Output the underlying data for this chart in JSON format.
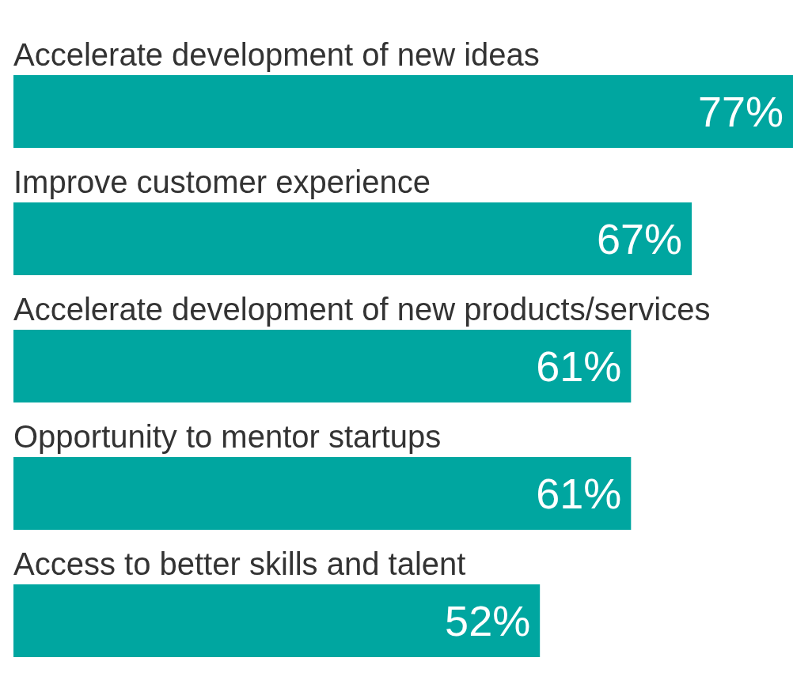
{
  "chart_data": {
    "type": "bar",
    "orientation": "horizontal",
    "categories": [
      "Accelerate development of new ideas",
      "Improve customer experience",
      "Accelerate development of new products/services",
      "Opportunity to mentor startups",
      "Access to better skills and talent"
    ],
    "values": [
      77,
      67,
      61,
      61,
      52
    ],
    "value_labels": [
      "77%",
      "67%",
      "61%",
      "61%",
      "52%"
    ],
    "color": "#00a6a0"
  }
}
